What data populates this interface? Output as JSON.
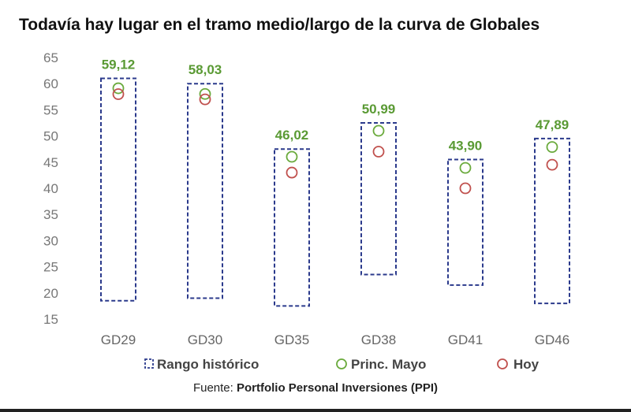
{
  "chart_data": {
    "type": "scatter",
    "title": "Todavía hay lugar en el tramo medio/largo de la curva de Globales",
    "categories": [
      "GD29",
      "GD30",
      "GD35",
      "GD38",
      "GD41",
      "GD46"
    ],
    "ylim": [
      15,
      65
    ],
    "yticks": [
      15,
      20,
      25,
      30,
      35,
      40,
      45,
      50,
      55,
      60,
      65
    ],
    "grid": false,
    "legend_position": "bottom",
    "series": [
      {
        "name": "Rango histórico",
        "kind": "range",
        "color": "#2b3a8c",
        "low": [
          18.5,
          19,
          17.5,
          23.5,
          21.5,
          18
        ],
        "high": [
          61,
          60,
          47.5,
          52.5,
          45.5,
          49.5
        ]
      },
      {
        "name": "Princ. Mayo",
        "kind": "marker",
        "color": "#6aaa3c",
        "values": [
          59.12,
          58.03,
          46.02,
          50.99,
          43.9,
          47.89
        ]
      },
      {
        "name": "Hoy",
        "kind": "marker",
        "color": "#c0504d",
        "values": [
          58,
          57,
          43,
          47,
          40,
          44.5
        ]
      }
    ],
    "data_labels": [
      "59,12",
      "58,03",
      "46,02",
      "50,99",
      "43,90",
      "47,89"
    ]
  },
  "source": {
    "prefix": "Fuente: ",
    "name": "Portfolio Personal Inversiones (PPI)"
  }
}
